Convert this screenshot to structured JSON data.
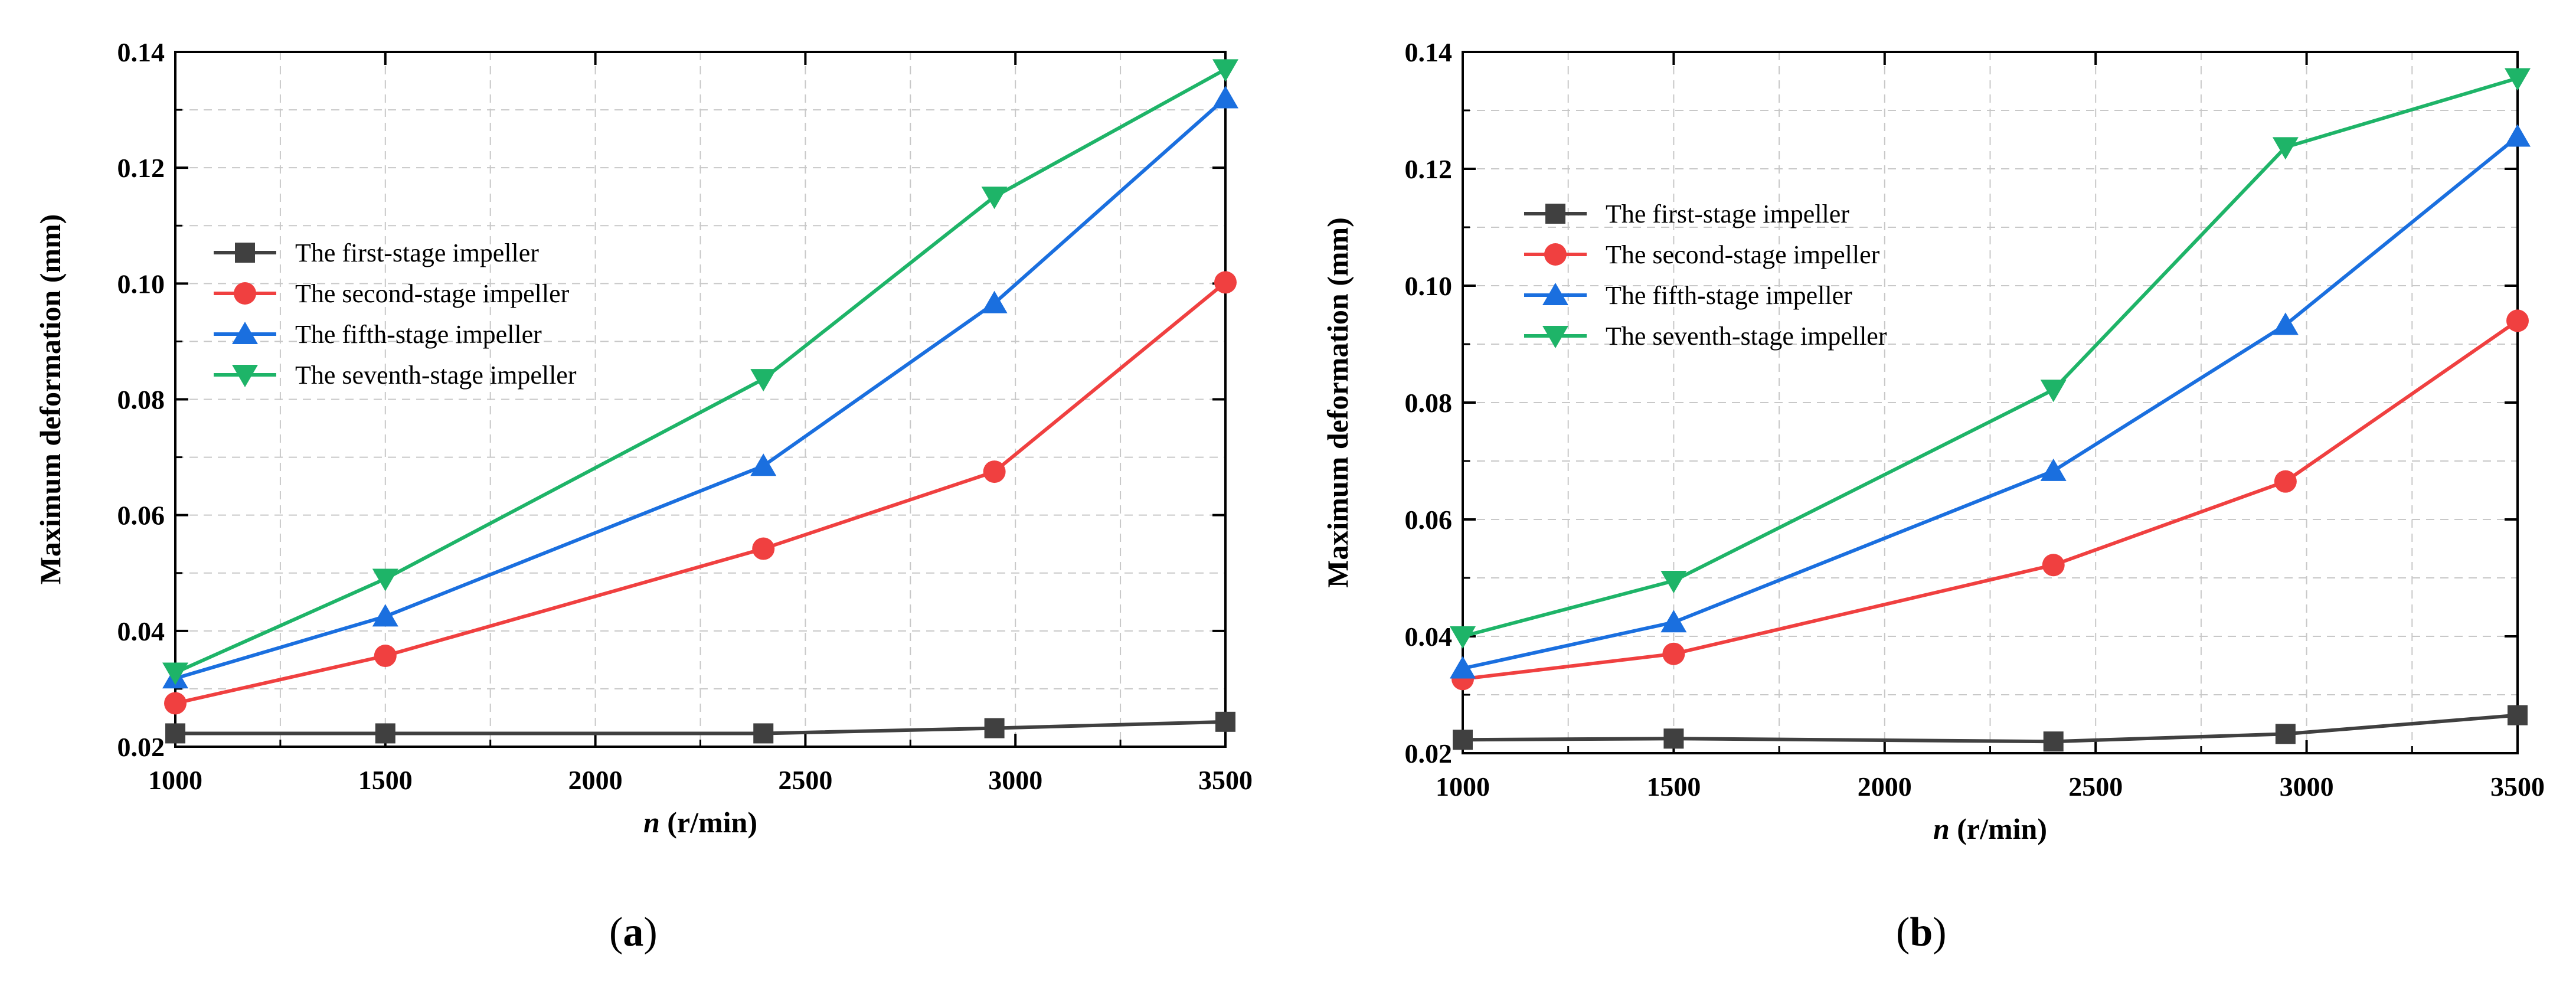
{
  "chart_data": [
    {
      "type": "line",
      "panel_label": "a",
      "x": [
        1000,
        1500,
        2400,
        2950,
        3500
      ],
      "xlabel_var": "n",
      "xlabel_unit": "(r/min)",
      "ylabel": "Maximum deformation (mm)",
      "xlim": [
        1000,
        3500
      ],
      "ylim": [
        0.02,
        0.14
      ],
      "xticks": [
        "1000",
        "1500",
        "2000",
        "2500",
        "3000",
        "3500"
      ],
      "yticks": [
        "0.02",
        "0.04",
        "0.06",
        "0.08",
        "0.10",
        "0.12",
        "0.14"
      ],
      "grid": true,
      "legend_position": "center-left",
      "series": [
        {
          "name": "The first-stage impeller",
          "color": "#404040",
          "marker": "square",
          "values": [
            0.0223,
            0.0223,
            0.0223,
            0.0232,
            0.0243
          ]
        },
        {
          "name": "The second-stage impeller",
          "color": "#f04040",
          "marker": "circle",
          "values": [
            0.0275,
            0.0357,
            0.0542,
            0.0675,
            0.1002
          ]
        },
        {
          "name": "The fifth-stage impeller",
          "color": "#1a6fdf",
          "marker": "triangle-up",
          "values": [
            0.0318,
            0.0425,
            0.0685,
            0.0966,
            0.132
          ]
        },
        {
          "name": "The seventh-stage impeller",
          "color": "#1eb468",
          "marker": "triangle-down",
          "values": [
            0.0328,
            0.049,
            0.0835,
            0.115,
            0.137
          ]
        }
      ]
    },
    {
      "type": "line",
      "panel_label": "b",
      "x": [
        1000,
        1500,
        2400,
        2950,
        3500
      ],
      "xlabel_var": "n",
      "xlabel_unit": "(r/min)",
      "ylabel": "Maximum deformation (mm)",
      "xlim": [
        1000,
        3500
      ],
      "ylim": [
        0.02,
        0.14
      ],
      "xticks": [
        "1000",
        "1500",
        "2000",
        "2500",
        "3000",
        "3500"
      ],
      "yticks": [
        "0.02",
        "0.04",
        "0.06",
        "0.08",
        "0.10",
        "0.12",
        "0.14"
      ],
      "grid": true,
      "legend_position": "top-left",
      "series": [
        {
          "name": "The first-stage impeller",
          "color": "#404040",
          "marker": "square",
          "values": [
            0.0223,
            0.0225,
            0.022,
            0.0233,
            0.0265
          ]
        },
        {
          "name": "The second-stage impeller",
          "color": "#f04040",
          "marker": "circle",
          "values": [
            0.0327,
            0.037,
            0.0522,
            0.0665,
            0.094
          ]
        },
        {
          "name": "The fifth-stage impeller",
          "color": "#1a6fdf",
          "marker": "triangle-up",
          "values": [
            0.0345,
            0.0424,
            0.0683,
            0.0933,
            0.1255
          ]
        },
        {
          "name": "The seventh-stage impeller",
          "color": "#1eb468",
          "marker": "triangle-down",
          "values": [
            0.04,
            0.0495,
            0.0822,
            0.1237,
            0.1355
          ]
        }
      ]
    }
  ]
}
